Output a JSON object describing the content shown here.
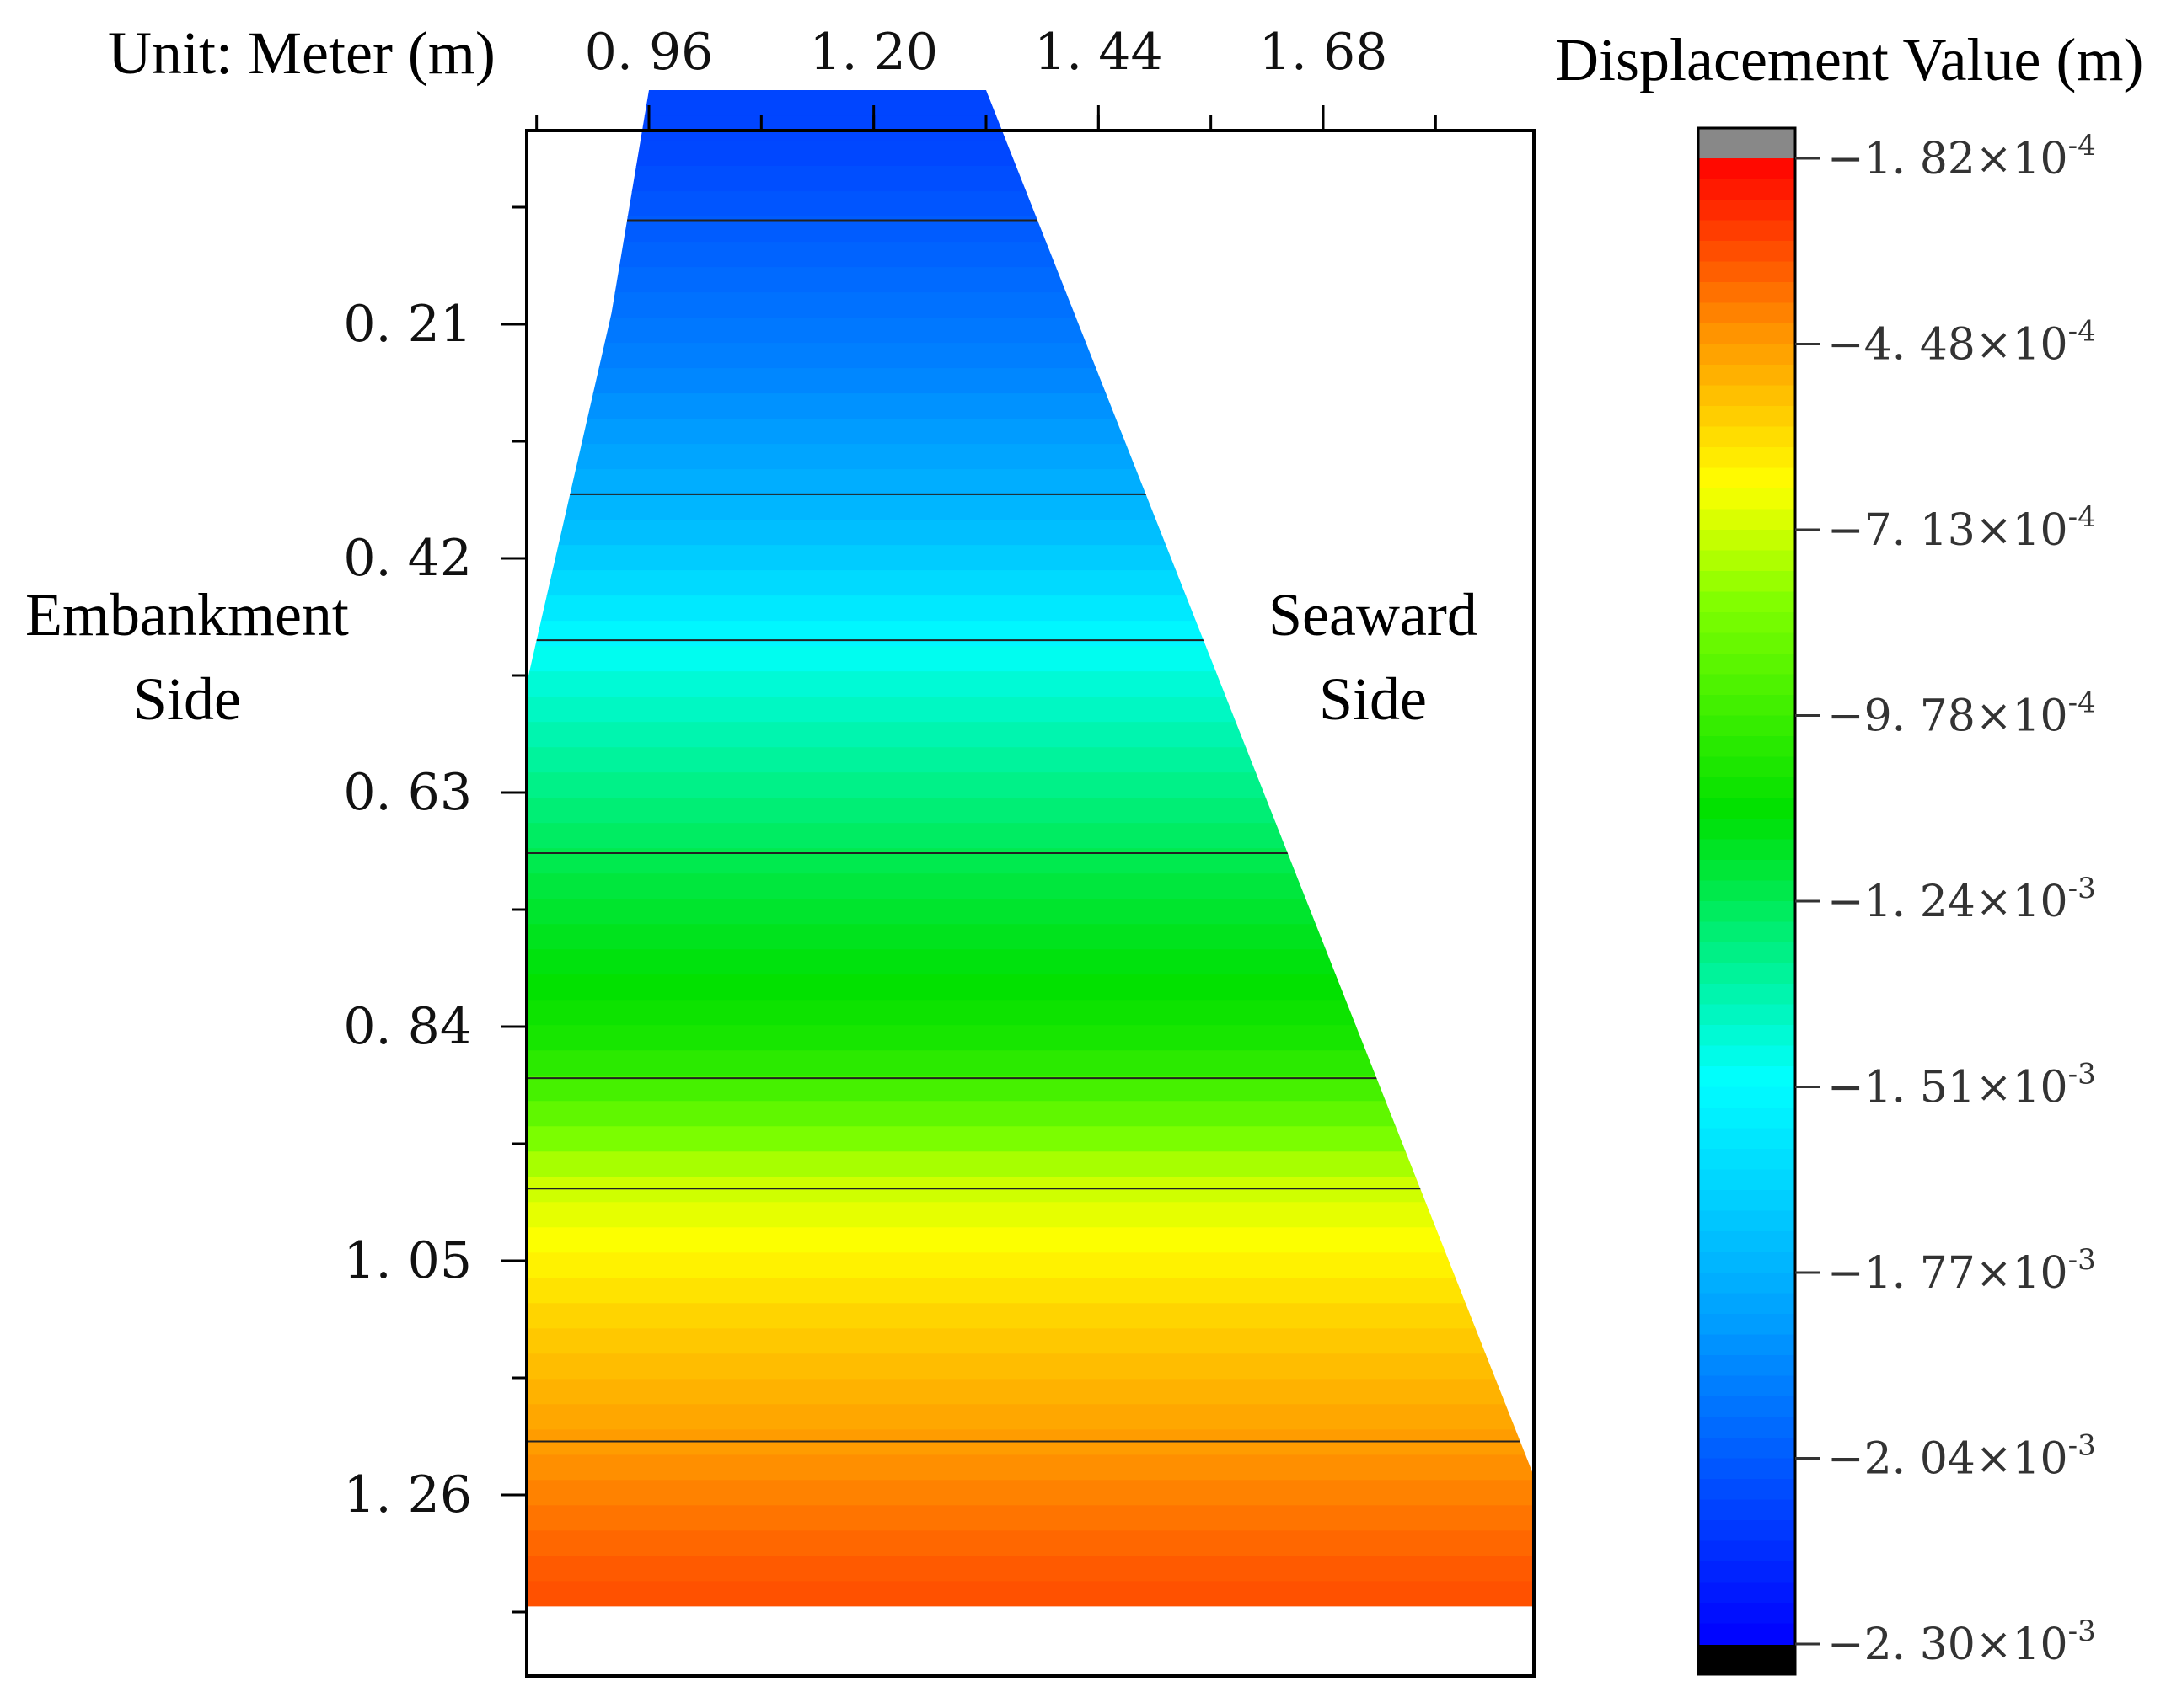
{
  "figure": {
    "unit_label": "Unit: Meter (m)",
    "colorbar_title": "Displacement Value (m)",
    "left_side_label": [
      "Embankment",
      "Side"
    ],
    "right_side_label": [
      "Seaward",
      "Side"
    ]
  },
  "chart_data": {
    "type": "heatmap",
    "title": "",
    "xlabel": "",
    "ylabel": "",
    "x_ticks": [
      "0. 96",
      "1. 20",
      "1. 44",
      "1. 68"
    ],
    "x_tick_values": [
      0.96,
      1.2,
      1.44,
      1.68
    ],
    "y_ticks": [
      "0. 21",
      "0. 42",
      "0. 63",
      "0. 84",
      "1. 05",
      "1. 26"
    ],
    "y_tick_values": [
      0.21,
      0.42,
      0.63,
      0.84,
      1.05,
      1.26
    ],
    "xlim": [
      0.96,
      1.68
    ],
    "ylim": [
      0.21,
      1.26
    ],
    "y_direction": "down",
    "x_axis_position": "top",
    "domain_outline": [
      [
        0.96,
        0.0
      ],
      [
        1.32,
        0.0
      ],
      [
        1.96,
        1.36
      ],
      [
        0.71,
        1.36
      ],
      [
        0.71,
        0.97
      ],
      [
        0.92,
        0.2
      ]
    ],
    "contour_levels": [
      -0.000182,
      -0.000448,
      -0.000713,
      -0.000978,
      -0.00124,
      -0.00151,
      -0.00177,
      -0.00204,
      -0.0023
    ],
    "colorbar": {
      "label": "Displacement Value (m)",
      "min": -0.0023,
      "max": -0.000182,
      "ticks": [
        {
          "value": -0.000182,
          "mantissa": "−1. 82×10",
          "exponent": "-4"
        },
        {
          "value": -0.000448,
          "mantissa": "−4. 48×10",
          "exponent": "-4"
        },
        {
          "value": -0.000713,
          "mantissa": "−7. 13×10",
          "exponent": "-4"
        },
        {
          "value": -0.000978,
          "mantissa": "−9. 78×10",
          "exponent": "-4"
        },
        {
          "value": -0.00124,
          "mantissa": "−1. 24×10",
          "exponent": "-3"
        },
        {
          "value": -0.00151,
          "mantissa": "−1. 51×10",
          "exponent": "-3"
        },
        {
          "value": -0.00177,
          "mantissa": "−1. 77×10",
          "exponent": "-3"
        },
        {
          "value": -0.00204,
          "mantissa": "−2. 04×10",
          "exponent": "-3"
        },
        {
          "value": -0.0023,
          "mantissa": "−2. 30×10",
          "exponent": "-3"
        }
      ],
      "colormap": "rainbow",
      "high_color": "#ff0000",
      "low_color": "#0000ff",
      "over_color": "#888888",
      "under_color": "#000000"
    },
    "field_profile": [
      {
        "y": 0.05,
        "value": -0.0021
      },
      {
        "y": 0.25,
        "value": -0.00192
      },
      {
        "y": 0.4,
        "value": -0.00172
      },
      {
        "y": 0.52,
        "value": -0.00145
      },
      {
        "y": 0.7,
        "value": -0.00122
      },
      {
        "y": 0.86,
        "value": -0.00105
      },
      {
        "y": 0.98,
        "value": -0.00072
      },
      {
        "y": 1.1,
        "value": -0.00056
      },
      {
        "y": 1.22,
        "value": -0.00044
      },
      {
        "y": 1.34,
        "value": -0.00032
      }
    ],
    "grid": false,
    "legend": "right"
  }
}
